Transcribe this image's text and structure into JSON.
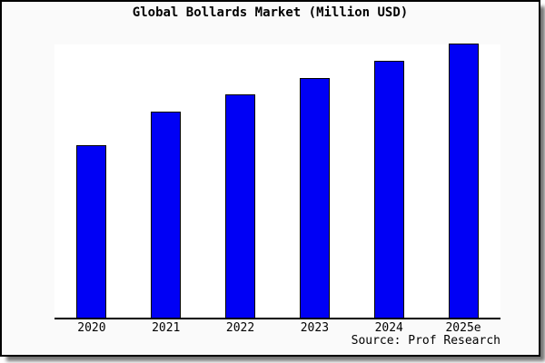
{
  "title": "Global Bollards Market (Million USD)",
  "source_credit": "Source: Prof Research",
  "chart_data": {
    "type": "bar",
    "title": "Global Bollards Market (Million USD)",
    "categories": [
      "2020",
      "2021",
      "2022",
      "2023",
      "2024",
      "2025e"
    ],
    "values": [
      62.8,
      75.0,
      81.4,
      87.5,
      93.6,
      100.0
    ],
    "values_note": "y-axis has no tick labels or gridlines; values are bar heights as percent of tallest bar (2025e = 100)",
    "xlabel": "",
    "ylabel": "",
    "ylim": [
      0,
      100
    ],
    "grid": false,
    "legend": false,
    "y_axis_visible": false,
    "bar_color": "#0000f5",
    "bar_border_color": "#000000"
  },
  "colors": {
    "card_background": "#fafafa",
    "plot_background": "#ffffff",
    "frame": "#000000",
    "axis": "#000000",
    "bar": "#0000f5",
    "shadow": "#8c8c8c"
  }
}
